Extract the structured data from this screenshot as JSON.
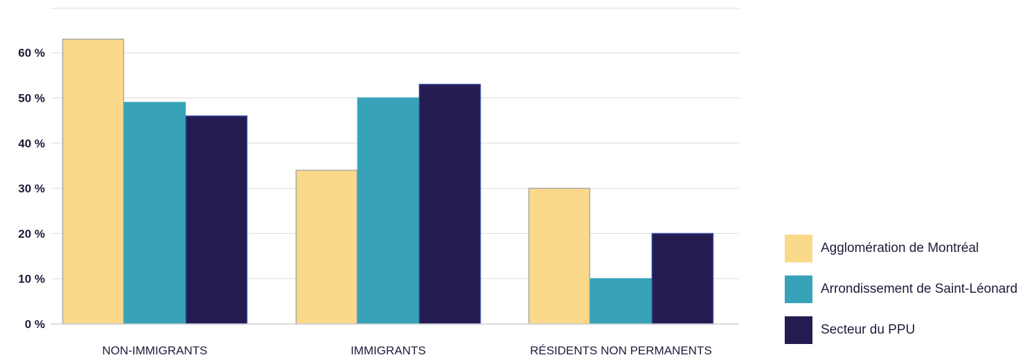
{
  "chart_data": {
    "type": "bar",
    "title": "",
    "xlabel": "",
    "ylabel": "",
    "categories": [
      "NON-IMMIGRANTS",
      "IMMIGRANTS",
      "RÉSIDENTS NON PERMANENTS"
    ],
    "series": [
      {
        "name": "Agglomération de Montréal",
        "color": "#fbd98a",
        "border": "#a8a8a8",
        "values": [
          63,
          34,
          30
        ]
      },
      {
        "name": "Arrondissement de Saint-Léonard",
        "color": "#38a3b8",
        "border": "#38a3b8",
        "values": [
          49,
          50,
          10
        ]
      },
      {
        "name": "Secteur du PPU",
        "color": "#241c50",
        "border": "#3346a0",
        "values": [
          46,
          53,
          20
        ]
      }
    ],
    "ylim": [
      0,
      70
    ],
    "yticks": [
      {
        "value": 0,
        "label": "0 %"
      },
      {
        "value": 10,
        "label": "10 %"
      },
      {
        "value": 20,
        "label": "20 %"
      },
      {
        "value": 30,
        "label": "30 %"
      },
      {
        "value": 40,
        "label": "40 %"
      },
      {
        "value": 50,
        "label": "50 %"
      },
      {
        "value": 60,
        "label": "60 %"
      }
    ],
    "grid": true,
    "legend_position": "right"
  }
}
